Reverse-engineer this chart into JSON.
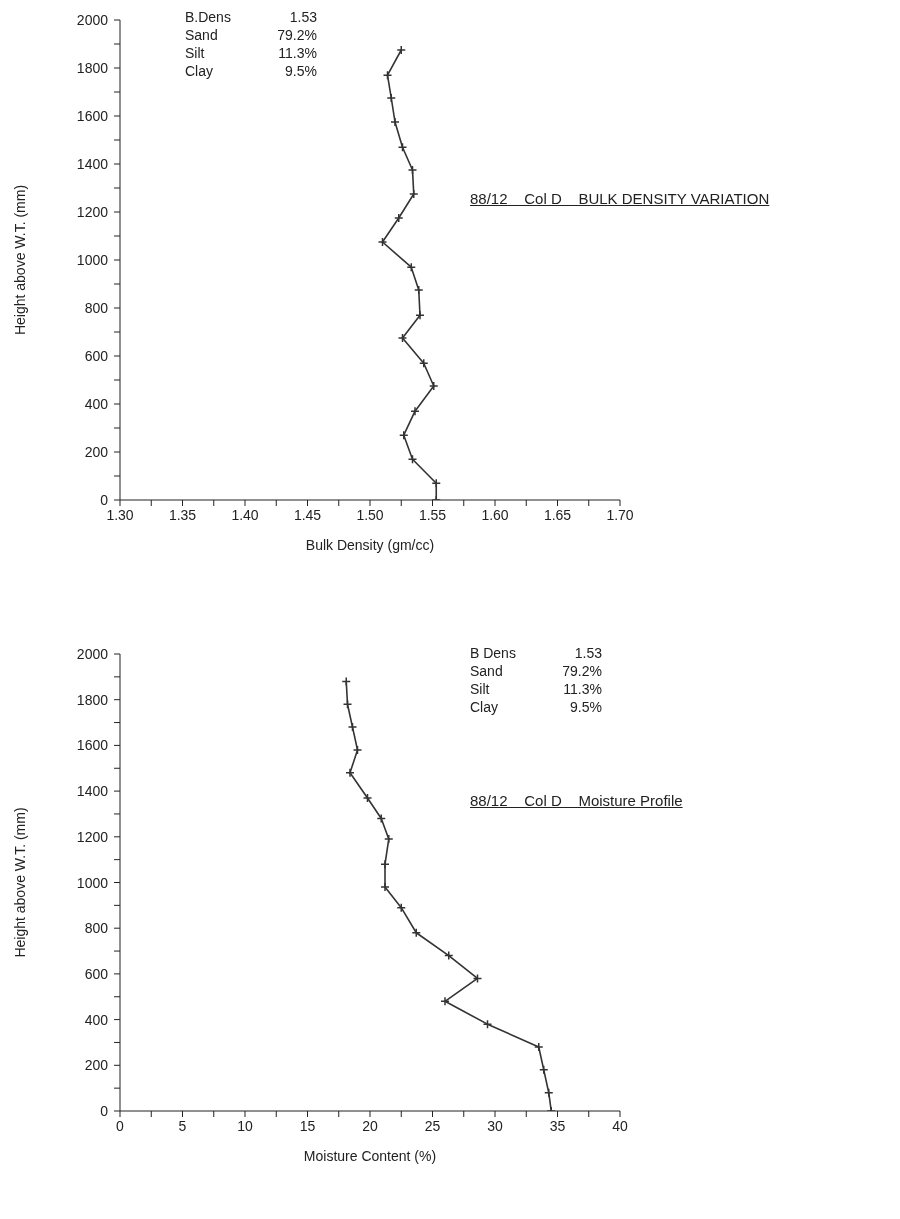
{
  "chart_data": [
    {
      "type": "line",
      "title": "88/12    Col D    BULK DENSITY VARIATION",
      "xlabel": "Bulk Density (gm/cc)",
      "ylabel": "Height above W.T. (mm)",
      "annotations": [
        "B.Dens 1.53",
        "Sand 79.2%",
        "Silt 11.3%",
        "Clay 9.5%"
      ],
      "marker": "cross",
      "line_style": "solid",
      "xlim": [
        1.3,
        1.7
      ],
      "xticks": [
        {
          "value": 1.3,
          "label": "1.30"
        },
        {
          "value": 1.325,
          "label": null
        },
        {
          "value": 1.35,
          "label": "1.35"
        },
        {
          "value": 1.375,
          "label": null
        },
        {
          "value": 1.4,
          "label": "1.40"
        },
        {
          "value": 1.425,
          "label": null
        },
        {
          "value": 1.45,
          "label": "1.45"
        },
        {
          "value": 1.475,
          "label": null
        },
        {
          "value": 1.5,
          "label": "1.50"
        },
        {
          "value": 1.525,
          "label": null
        },
        {
          "value": 1.55,
          "label": "1.55"
        },
        {
          "value": 1.575,
          "label": null
        },
        {
          "value": 1.6,
          "label": "1.60"
        },
        {
          "value": 1.625,
          "label": null
        },
        {
          "value": 1.65,
          "label": "1.65"
        },
        {
          "value": 1.675,
          "label": null
        },
        {
          "value": 1.7,
          "label": "1.70"
        }
      ],
      "ylim": [
        0,
        2000
      ],
      "yticks": [
        0,
        {
          "value": 100,
          "label": null
        },
        200,
        {
          "value": 300,
          "label": null
        },
        400,
        {
          "value": 500,
          "label": null
        },
        600,
        {
          "value": 700,
          "label": null
        },
        800,
        {
          "value": 900,
          "label": null
        },
        1000,
        {
          "value": 1100,
          "label": null
        },
        1200,
        {
          "value": 1300,
          "label": null
        },
        1400,
        {
          "value": 1500,
          "label": null
        },
        1600,
        {
          "value": 1700,
          "label": null
        },
        1800,
        {
          "value": 1900,
          "label": null
        },
        2000
      ],
      "series": [
        {
          "color": "#333333",
          "x": [
            1.553,
            1.553,
            1.534,
            1.527,
            1.536,
            1.551,
            1.543,
            1.526,
            1.54,
            1.539,
            1.533,
            1.51,
            1.523,
            1.535,
            1.534,
            1.526,
            1.52,
            1.517,
            1.514,
            1.525
          ],
          "values": [
            0,
            70,
            170,
            270,
            370,
            475,
            570,
            675,
            770,
            875,
            970,
            1075,
            1175,
            1275,
            1375,
            1470,
            1575,
            1675,
            1770,
            1875
          ]
        }
      ]
    },
    {
      "type": "line",
      "title": "88/12    Col D    Moisture Profile",
      "xlabel": "Moisture Content (%)",
      "ylabel": "Height above W.T. (mm)",
      "annotations": [
        "B Dens 1.53",
        "Sand 79.2%",
        "Silt 11.3%",
        "Clay 9.5%"
      ],
      "marker": "cross",
      "line_style": "solid",
      "xlim": [
        0,
        40
      ],
      "xticks": [
        0,
        {
          "value": 2.5,
          "label": null
        },
        5,
        {
          "value": 7.5,
          "label": null
        },
        10,
        {
          "value": 12.5,
          "label": null
        },
        15,
        {
          "value": 17.5,
          "label": null
        },
        20,
        {
          "value": 22.5,
          "label": null
        },
        25,
        {
          "value": 27.5,
          "label": null
        },
        30,
        {
          "value": 32.5,
          "label": null
        },
        35,
        {
          "value": 37.5,
          "label": null
        },
        40
      ],
      "ylim": [
        0,
        2000
      ],
      "yticks": [
        0,
        {
          "value": 100,
          "label": null
        },
        200,
        {
          "value": 300,
          "label": null
        },
        400,
        {
          "value": 500,
          "label": null
        },
        600,
        {
          "value": 700,
          "label": null
        },
        800,
        {
          "value": 900,
          "label": null
        },
        1000,
        {
          "value": 1100,
          "label": null
        },
        1200,
        {
          "value": 1300,
          "label": null
        },
        1400,
        {
          "value": 1500,
          "label": null
        },
        1600,
        {
          "value": 1700,
          "label": null
        },
        1800,
        {
          "value": 1900,
          "label": null
        },
        2000
      ],
      "series": [
        {
          "color": "#333333",
          "x": [
            34.5,
            34.3,
            33.9,
            33.5,
            29.4,
            26.0,
            28.6,
            26.3,
            23.7,
            22.5,
            21.2,
            21.2,
            21.5,
            20.9,
            19.8,
            18.4,
            19.0,
            18.6,
            18.2,
            18.1
          ],
          "values": [
            0,
            80,
            180,
            280,
            380,
            480,
            580,
            680,
            780,
            890,
            980,
            1080,
            1190,
            1280,
            1370,
            1480,
            1580,
            1680,
            1780,
            1880
          ]
        }
      ]
    }
  ]
}
